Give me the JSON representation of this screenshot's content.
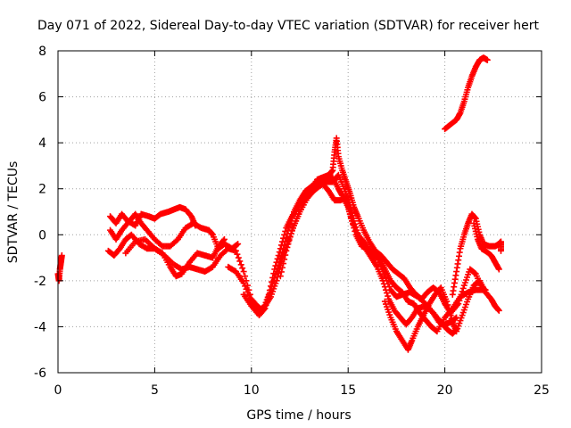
{
  "chart_data": {
    "type": "scatter",
    "title": "Day 071 of 2022, Sidereal Day-to-day VTEC variation (SDTVAR) for receiver hert",
    "xlabel": "GPS time / hours",
    "ylabel": "SDTVAR / TECUs",
    "xlim": [
      0,
      25
    ],
    "ylim": [
      -6,
      8
    ],
    "xticks": [
      0,
      5,
      10,
      15,
      20,
      25
    ],
    "yticks": [
      -6,
      -4,
      -2,
      0,
      2,
      4,
      6,
      8
    ],
    "grid": true,
    "marker": "+",
    "color": "#ff0000",
    "series": [
      {
        "name": "track-1",
        "points": [
          [
            0.0,
            -1.7
          ],
          [
            0.05,
            -2.0
          ],
          [
            0.1,
            -1.5
          ],
          [
            0.15,
            -1.2
          ],
          [
            0.2,
            -0.9
          ]
        ]
      },
      {
        "name": "track-2",
        "points": [
          [
            2.7,
            0.8
          ],
          [
            3.0,
            0.5
          ],
          [
            3.3,
            0.9
          ],
          [
            3.6,
            0.6
          ],
          [
            4.0,
            0.4
          ],
          [
            4.3,
            0.9
          ],
          [
            4.7,
            0.8
          ],
          [
            5.0,
            0.7
          ],
          [
            5.3,
            0.9
          ],
          [
            5.7,
            1.0
          ],
          [
            6.0,
            1.1
          ],
          [
            6.3,
            1.2
          ],
          [
            6.6,
            1.1
          ],
          [
            6.9,
            0.8
          ],
          [
            7.1,
            0.4
          ]
        ]
      },
      {
        "name": "track-3",
        "points": [
          [
            2.7,
            0.2
          ],
          [
            3.0,
            -0.2
          ],
          [
            3.3,
            0.2
          ],
          [
            3.7,
            0.6
          ],
          [
            4.0,
            0.9
          ],
          [
            4.3,
            0.5
          ],
          [
            4.6,
            0.2
          ],
          [
            5.0,
            -0.2
          ],
          [
            5.4,
            -0.5
          ],
          [
            5.8,
            -0.5
          ],
          [
            6.2,
            -0.2
          ],
          [
            6.6,
            0.3
          ],
          [
            7.0,
            0.5
          ],
          [
            7.4,
            0.3
          ],
          [
            7.8,
            0.2
          ],
          [
            8.0,
            0.0
          ],
          [
            8.3,
            -0.6
          ],
          [
            8.6,
            -0.4
          ],
          [
            9.0,
            -0.6
          ],
          [
            9.3,
            -0.4
          ]
        ]
      },
      {
        "name": "track-4",
        "points": [
          [
            2.6,
            -0.7
          ],
          [
            2.9,
            -0.9
          ],
          [
            3.2,
            -0.6
          ],
          [
            3.5,
            -0.2
          ],
          [
            3.8,
            0.0
          ],
          [
            4.2,
            -0.4
          ],
          [
            4.6,
            -0.6
          ],
          [
            5.0,
            -0.6
          ],
          [
            5.4,
            -0.8
          ],
          [
            5.8,
            -1.4
          ],
          [
            6.1,
            -1.8
          ],
          [
            6.4,
            -1.7
          ],
          [
            6.8,
            -1.2
          ],
          [
            7.2,
            -0.8
          ],
          [
            7.6,
            -0.9
          ],
          [
            8.0,
            -1.0
          ],
          [
            8.3,
            -0.5
          ],
          [
            8.6,
            -0.2
          ]
        ]
      },
      {
        "name": "track-5",
        "points": [
          [
            3.5,
            -0.8
          ],
          [
            4.0,
            -0.3
          ],
          [
            4.5,
            -0.2
          ],
          [
            5.0,
            -0.6
          ],
          [
            5.5,
            -0.9
          ],
          [
            6.0,
            -1.3
          ],
          [
            6.4,
            -1.5
          ],
          [
            6.8,
            -1.4
          ],
          [
            7.2,
            -1.5
          ],
          [
            7.6,
            -1.6
          ],
          [
            8.0,
            -1.4
          ],
          [
            8.4,
            -0.9
          ],
          [
            8.8,
            -0.6
          ],
          [
            9.2,
            -0.7
          ],
          [
            9.6,
            -1.6
          ],
          [
            10.0,
            -2.8
          ],
          [
            10.3,
            -3.1
          ],
          [
            10.6,
            -3.3
          ],
          [
            10.9,
            -2.6
          ],
          [
            11.2,
            -1.5
          ],
          [
            11.5,
            -0.6
          ],
          [
            11.8,
            0.3
          ],
          [
            12.1,
            0.8
          ],
          [
            12.4,
            1.2
          ],
          [
            12.7,
            1.6
          ],
          [
            13.0,
            2.0
          ],
          [
            13.3,
            2.1
          ],
          [
            13.6,
            2.3
          ],
          [
            13.9,
            2.4
          ],
          [
            14.2,
            2.5
          ],
          [
            14.5,
            2.0
          ],
          [
            14.7,
            1.7
          ],
          [
            15.0,
            1.2
          ],
          [
            15.2,
            0.6
          ],
          [
            15.5,
            0.0
          ],
          [
            15.8,
            -0.3
          ],
          [
            16.1,
            -0.7
          ],
          [
            16.5,
            -1.0
          ],
          [
            16.8,
            -1.6
          ],
          [
            17.2,
            -2.4
          ],
          [
            17.5,
            -2.7
          ],
          [
            17.8,
            -2.6
          ],
          [
            18.2,
            -2.5
          ],
          [
            18.6,
            -2.7
          ],
          [
            19.0,
            -3.0
          ],
          [
            19.4,
            -3.4
          ],
          [
            19.7,
            -3.8
          ],
          [
            20.0,
            -3.9
          ],
          [
            20.3,
            -3.8
          ],
          [
            20.6,
            -3.6
          ]
        ]
      },
      {
        "name": "track-6",
        "points": [
          [
            8.8,
            -1.4
          ],
          [
            9.2,
            -1.6
          ],
          [
            9.6,
            -2.1
          ],
          [
            10.0,
            -2.9
          ],
          [
            10.4,
            -3.3
          ],
          [
            10.7,
            -3.1
          ],
          [
            11.0,
            -2.7
          ],
          [
            11.3,
            -2.0
          ],
          [
            11.6,
            -1.0
          ],
          [
            11.9,
            -0.3
          ],
          [
            12.2,
            0.4
          ],
          [
            12.5,
            1.0
          ],
          [
            12.9,
            1.6
          ],
          [
            13.2,
            1.9
          ],
          [
            13.5,
            2.1
          ],
          [
            13.9,
            2.3
          ],
          [
            14.2,
            2.3
          ],
          [
            14.5,
            2.6
          ],
          [
            14.8,
            2.0
          ],
          [
            15.1,
            1.3
          ],
          [
            15.3,
            0.6
          ],
          [
            15.6,
            -0.2
          ],
          [
            15.9,
            -0.6
          ],
          [
            16.2,
            -1.0
          ],
          [
            16.5,
            -1.4
          ],
          [
            16.8,
            -2.0
          ],
          [
            17.1,
            -2.8
          ],
          [
            17.4,
            -3.3
          ],
          [
            17.7,
            -3.6
          ],
          [
            18.0,
            -3.9
          ],
          [
            18.3,
            -3.6
          ],
          [
            18.6,
            -3.2
          ],
          [
            19.0,
            -3.1
          ],
          [
            19.4,
            -3.4
          ],
          [
            19.8,
            -3.8
          ],
          [
            20.1,
            -4.1
          ],
          [
            20.4,
            -4.3
          ],
          [
            20.6,
            -4.1
          ]
        ]
      },
      {
        "name": "track-7",
        "points": [
          [
            9.6,
            -2.6
          ],
          [
            10.0,
            -3.1
          ],
          [
            10.4,
            -3.5
          ],
          [
            10.7,
            -3.2
          ],
          [
            11.0,
            -2.4
          ],
          [
            11.3,
            -1.6
          ],
          [
            11.6,
            -0.8
          ],
          [
            11.9,
            0.2
          ],
          [
            12.2,
            1.0
          ],
          [
            12.5,
            1.5
          ],
          [
            12.8,
            1.9
          ],
          [
            13.1,
            2.1
          ],
          [
            13.4,
            2.3
          ],
          [
            13.7,
            2.2
          ],
          [
            14.0,
            1.9
          ],
          [
            14.3,
            1.5
          ],
          [
            14.6,
            1.5
          ],
          [
            14.9,
            1.6
          ],
          [
            15.1,
            0.9
          ],
          [
            15.4,
            0.0
          ],
          [
            15.7,
            -0.5
          ],
          [
            16.0,
            -0.6
          ],
          [
            16.3,
            -0.8
          ],
          [
            16.6,
            -1.0
          ],
          [
            16.9,
            -1.5
          ],
          [
            17.2,
            -2.0
          ],
          [
            17.5,
            -2.3
          ],
          [
            17.8,
            -2.5
          ],
          [
            18.1,
            -2.9
          ],
          [
            18.4,
            -3.0
          ],
          [
            18.7,
            -3.4
          ],
          [
            19.0,
            -3.7
          ],
          [
            19.3,
            -4.0
          ],
          [
            19.6,
            -4.2
          ],
          [
            20.0,
            -3.6
          ],
          [
            20.4,
            -3.2
          ],
          [
            20.8,
            -2.7
          ],
          [
            21.2,
            -2.5
          ],
          [
            21.6,
            -2.4
          ],
          [
            22.0,
            -2.4
          ]
        ]
      },
      {
        "name": "track-8",
        "points": [
          [
            11.5,
            -1.8
          ],
          [
            11.8,
            -0.7
          ],
          [
            12.1,
            0.2
          ],
          [
            12.4,
            0.8
          ],
          [
            12.7,
            1.4
          ],
          [
            13.0,
            1.9
          ],
          [
            13.4,
            2.4
          ],
          [
            13.7,
            2.5
          ],
          [
            14.0,
            2.6
          ],
          [
            14.2,
            2.8
          ],
          [
            14.3,
            3.6
          ],
          [
            14.4,
            4.2
          ],
          [
            14.5,
            3.4
          ],
          [
            14.7,
            2.8
          ],
          [
            14.9,
            2.3
          ],
          [
            15.1,
            1.8
          ],
          [
            15.3,
            1.2
          ],
          [
            15.5,
            0.8
          ],
          [
            15.8,
            0.2
          ],
          [
            16.1,
            -0.3
          ],
          [
            16.4,
            -0.7
          ],
          [
            16.7,
            -0.9
          ],
          [
            17.0,
            -1.2
          ],
          [
            17.3,
            -1.5
          ],
          [
            17.6,
            -1.7
          ],
          [
            17.9,
            -1.9
          ],
          [
            18.2,
            -2.3
          ],
          [
            18.5,
            -2.6
          ],
          [
            18.8,
            -2.8
          ],
          [
            19.1,
            -2.5
          ],
          [
            19.4,
            -2.3
          ],
          [
            19.7,
            -2.5
          ],
          [
            20.0,
            -3.0
          ],
          [
            20.3,
            -3.4
          ],
          [
            20.7,
            -3.0
          ],
          [
            21.0,
            -2.2
          ],
          [
            21.3,
            -1.5
          ],
          [
            21.6,
            -1.7
          ],
          [
            21.9,
            -2.3
          ],
          [
            22.1,
            -2.4
          ]
        ]
      },
      {
        "name": "track-9",
        "points": [
          [
            16.9,
            -2.9
          ],
          [
            17.2,
            -3.6
          ],
          [
            17.5,
            -4.2
          ],
          [
            17.8,
            -4.6
          ],
          [
            18.1,
            -5.0
          ],
          [
            18.3,
            -4.6
          ],
          [
            18.6,
            -4.0
          ],
          [
            18.9,
            -3.5
          ],
          [
            19.2,
            -3.0
          ],
          [
            19.5,
            -2.6
          ],
          [
            19.8,
            -2.3
          ],
          [
            20.1,
            -2.9
          ],
          [
            20.4,
            -3.8
          ],
          [
            20.6,
            -4.2
          ],
          [
            20.9,
            -3.5
          ],
          [
            21.2,
            -2.8
          ],
          [
            21.5,
            -2.2
          ],
          [
            21.8,
            -2.0
          ],
          [
            22.1,
            -2.5
          ],
          [
            22.4,
            -2.8
          ],
          [
            22.6,
            -3.1
          ],
          [
            22.8,
            -3.3
          ]
        ]
      },
      {
        "name": "track-10",
        "points": [
          [
            20.4,
            -2.6
          ],
          [
            20.6,
            -1.6
          ],
          [
            20.8,
            -0.6
          ],
          [
            21.0,
            0.0
          ],
          [
            21.2,
            0.5
          ],
          [
            21.4,
            0.9
          ],
          [
            21.6,
            0.7
          ],
          [
            21.8,
            0.0
          ],
          [
            22.0,
            -0.4
          ],
          [
            22.3,
            -0.5
          ],
          [
            22.6,
            -0.5
          ],
          [
            22.8,
            -0.4
          ],
          [
            22.9,
            -0.3
          ],
          [
            22.9,
            -0.7
          ]
        ]
      },
      {
        "name": "track-11",
        "points": [
          [
            21.5,
            0.5
          ],
          [
            21.7,
            -0.2
          ],
          [
            21.9,
            -0.6
          ],
          [
            22.1,
            -0.7
          ],
          [
            22.4,
            -0.9
          ],
          [
            22.6,
            -1.2
          ],
          [
            22.8,
            -1.5
          ]
        ]
      },
      {
        "name": "track-12",
        "points": [
          [
            20.0,
            4.6
          ],
          [
            20.3,
            4.8
          ],
          [
            20.6,
            5.0
          ],
          [
            20.8,
            5.3
          ],
          [
            21.0,
            5.8
          ],
          [
            21.2,
            6.4
          ],
          [
            21.4,
            6.9
          ],
          [
            21.6,
            7.3
          ],
          [
            21.8,
            7.6
          ],
          [
            22.0,
            7.7
          ],
          [
            22.2,
            7.6
          ]
        ]
      }
    ]
  }
}
